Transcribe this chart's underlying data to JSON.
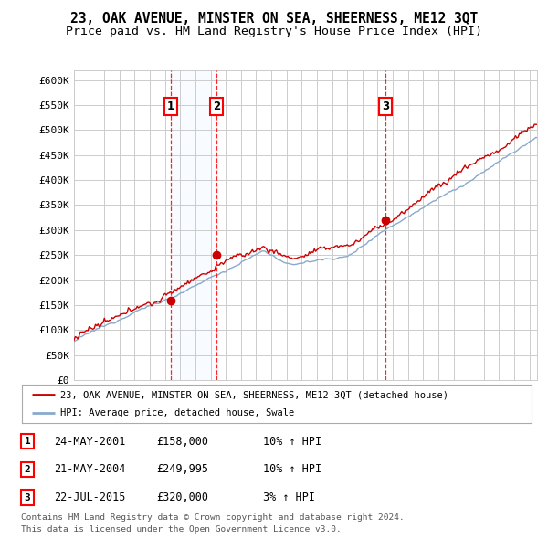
{
  "title": "23, OAK AVENUE, MINSTER ON SEA, SHEERNESS, ME12 3QT",
  "subtitle": "Price paid vs. HM Land Registry's House Price Index (HPI)",
  "ylim": [
    0,
    620000
  ],
  "yticks": [
    0,
    50000,
    100000,
    150000,
    200000,
    250000,
    300000,
    350000,
    400000,
    450000,
    500000,
    550000,
    600000
  ],
  "ytick_labels": [
    "£0",
    "£50K",
    "£100K",
    "£150K",
    "£200K",
    "£250K",
    "£300K",
    "£350K",
    "£400K",
    "£450K",
    "£500K",
    "£550K",
    "£600K"
  ],
  "xlim_start": 1995.0,
  "xlim_end": 2025.5,
  "sale_dates": [
    2001.38,
    2004.38,
    2015.54
  ],
  "sale_prices": [
    158000,
    249995,
    320000
  ],
  "sale_labels": [
    "1",
    "2",
    "3"
  ],
  "legend_red": "23, OAK AVENUE, MINSTER ON SEA, SHEERNESS, ME12 3QT (detached house)",
  "legend_blue": "HPI: Average price, detached house, Swale",
  "table_entries": [
    {
      "num": "1",
      "date": "24-MAY-2001",
      "price": "£158,000",
      "pct": "10% ↑ HPI"
    },
    {
      "num": "2",
      "date": "21-MAY-2004",
      "price": "£249,995",
      "pct": "10% ↑ HPI"
    },
    {
      "num": "3",
      "date": "22-JUL-2015",
      "price": "£320,000",
      "pct": "3% ↑ HPI"
    }
  ],
  "footnote1": "Contains HM Land Registry data © Crown copyright and database right 2024.",
  "footnote2": "This data is licensed under the Open Government Licence v3.0.",
  "bg_color": "#ffffff",
  "plot_bg_color": "#ffffff",
  "grid_color": "#cccccc",
  "red_line_color": "#cc0000",
  "blue_line_color": "#88aacc",
  "shade_color": "#ddeeff",
  "title_fontsize": 10.5,
  "subtitle_fontsize": 9.5
}
